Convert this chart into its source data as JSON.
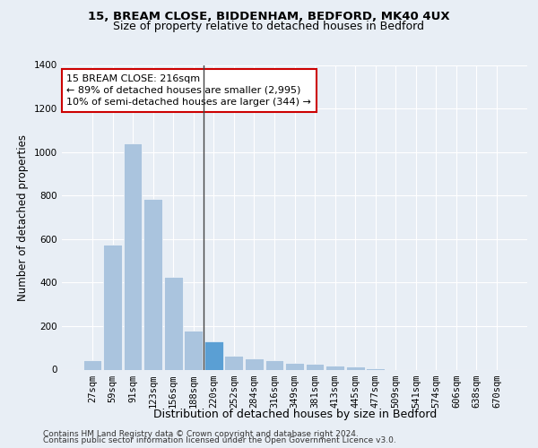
{
  "title1": "15, BREAM CLOSE, BIDDENHAM, BEDFORD, MK40 4UX",
  "title2": "Size of property relative to detached houses in Bedford",
  "xlabel": "Distribution of detached houses by size in Bedford",
  "ylabel": "Number of detached properties",
  "footnote1": "Contains HM Land Registry data © Crown copyright and database right 2024.",
  "footnote2": "Contains public sector information licensed under the Open Government Licence v3.0.",
  "categories": [
    "27sqm",
    "59sqm",
    "91sqm",
    "123sqm",
    "156sqm",
    "188sqm",
    "220sqm",
    "252sqm",
    "284sqm",
    "316sqm",
    "349sqm",
    "381sqm",
    "413sqm",
    "445sqm",
    "477sqm",
    "509sqm",
    "541sqm",
    "574sqm",
    "606sqm",
    "638sqm",
    "670sqm"
  ],
  "values": [
    45,
    575,
    1040,
    785,
    425,
    180,
    130,
    65,
    50,
    45,
    30,
    27,
    20,
    13,
    8,
    0,
    0,
    0,
    0,
    0,
    0
  ],
  "bar_color_normal": "#aac4de",
  "bar_color_highlight": "#5a9fd4",
  "highlight_index": 6,
  "ylim": [
    0,
    1400
  ],
  "yticks": [
    0,
    200,
    400,
    600,
    800,
    1000,
    1200,
    1400
  ],
  "bg_color": "#e8eef5",
  "plot_bg_color": "#e8eef5",
  "annotation_box_text1": "15 BREAM CLOSE: 216sqm",
  "annotation_box_text2": "← 89% of detached houses are smaller (2,995)",
  "annotation_box_text3": "10% of semi-detached houses are larger (344) →",
  "vline_color": "#444444",
  "box_edge_color": "#cc0000",
  "title1_fontsize": 9.5,
  "title2_fontsize": 9,
  "axis_label_fontsize": 8.5,
  "tick_fontsize": 7.5,
  "annotation_fontsize": 8,
  "footnote_fontsize": 6.5
}
